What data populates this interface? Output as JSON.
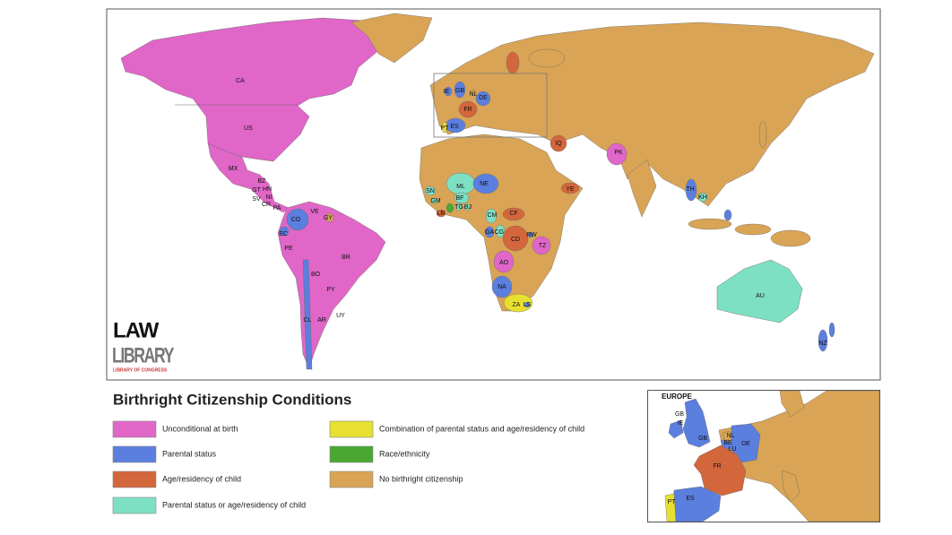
{
  "map": {
    "countries": [
      "CA",
      "US",
      "MX",
      "BZ",
      "GT",
      "HN",
      "SV",
      "NI",
      "CR",
      "PA",
      "CO",
      "VE",
      "GY",
      "EC",
      "PE",
      "BR",
      "BO",
      "PY",
      "UY",
      "CL",
      "AR",
      "IE",
      "GB",
      "NL",
      "DE",
      "FR",
      "ES",
      "PT",
      "IQ",
      "PK",
      "YE",
      "ML",
      "NE",
      "SN",
      "GM",
      "BF",
      "TG",
      "BJ",
      "LR",
      "CM",
      "CF",
      "GA",
      "CG",
      "CD",
      "RW",
      "TZ",
      "AO",
      "NA",
      "ZA",
      "LS",
      "TH",
      "KH",
      "AU",
      "NZ"
    ],
    "logo": {
      "line1": "LAW",
      "line2": "LIBRARY",
      "line3": "LIBRARY OF CONGRESS"
    },
    "inset": {
      "title": "EUROPE",
      "countries": [
        "IE",
        "GB",
        "GB",
        "NL",
        "BE",
        "LU",
        "DE",
        "FR",
        "ES",
        "PT"
      ]
    }
  },
  "legend": {
    "title": "Birthright Citizenship Conditions",
    "items": [
      {
        "label": "Unconditional at birth",
        "color": "#e066c8"
      },
      {
        "label": "Parental status",
        "color": "#5b7fde"
      },
      {
        "label": "Age/residency of child",
        "color": "#d4663c"
      },
      {
        "label": "Parental status or age/residency of child",
        "color": "#7ee0c3"
      },
      {
        "label": "Combination of parental status and age/residency of child",
        "color": "#e8e030"
      },
      {
        "label": "Race/ethnicity",
        "color": "#4aa832"
      },
      {
        "label": "No birthright citizenship",
        "color": "#d9a455"
      }
    ]
  }
}
